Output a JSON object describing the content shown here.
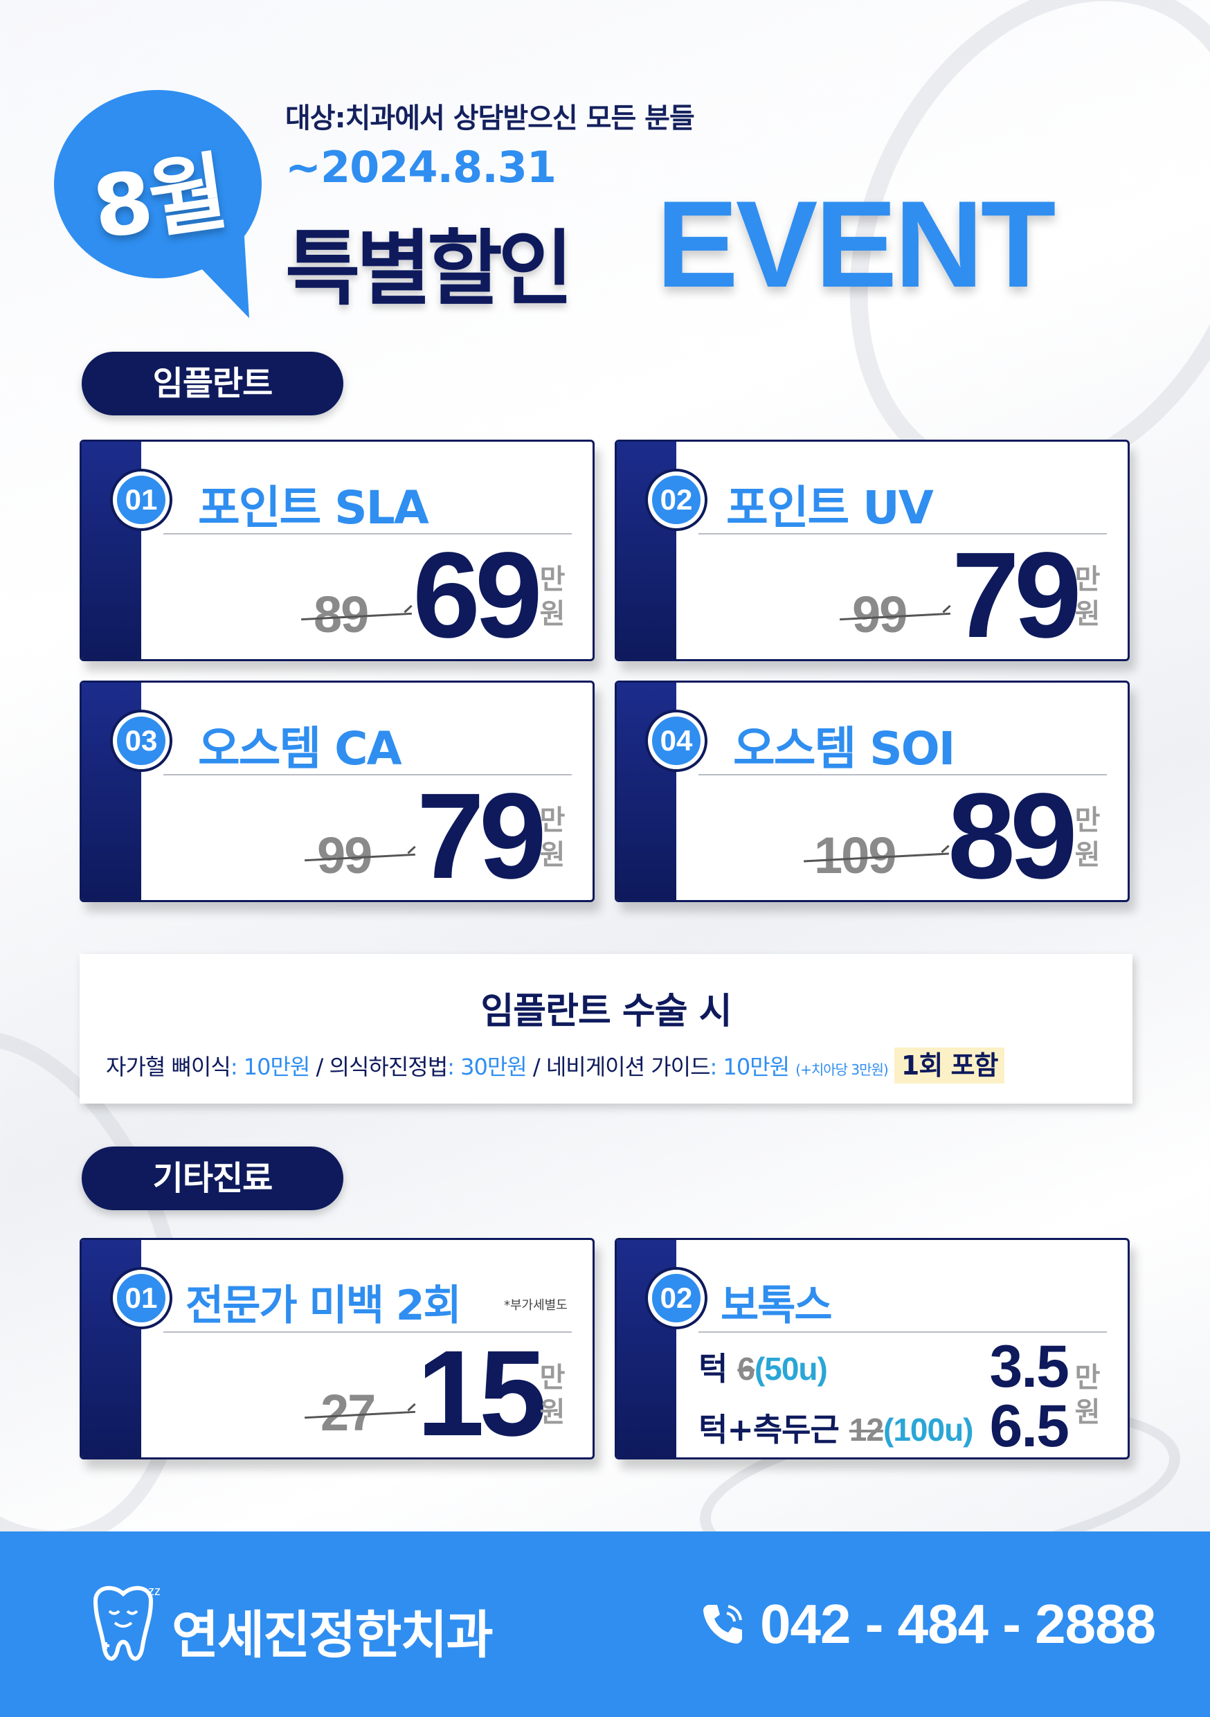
{
  "header": {
    "month_badge": "8월",
    "target": "대상:치과에서 상담받으신 모든 분들",
    "date": "~2024.8.31",
    "title_kr": "특별할인",
    "title_en": "EVENT"
  },
  "sections": {
    "implant": "임플란트",
    "other": "기타진료"
  },
  "implant_cards": [
    {
      "num": "01",
      "name": "포인트 SLA",
      "old": "89",
      "new": "69",
      "unit": "만원"
    },
    {
      "num": "02",
      "name": "포인트 UV",
      "old": "99",
      "new": "79",
      "unit": "만원"
    },
    {
      "num": "03",
      "name": "오스템 CA",
      "old": "99",
      "new": "79",
      "unit": "만원"
    },
    {
      "num": "04",
      "name": "오스템 SOI",
      "old": "109",
      "new": "89",
      "unit": "만원"
    }
  ],
  "notice": {
    "head": "임플란트 수술 시",
    "item1_label": "자가혈 뼈이식",
    "item1_value": ": 10만원",
    "sep1": " / ",
    "item2_label": "의식하진정법",
    "item2_value": ": 30만원",
    "sep2": " / ",
    "item3_label": "네비게이션 가이드",
    "item3_value": ": 10만원",
    "item3_note": "(+치아당 3만원)",
    "highlight": "1회 포함"
  },
  "other_cards": {
    "whitening": {
      "num": "01",
      "name": "전문가 미백 2회",
      "note": "*부가세별도",
      "old": "27",
      "new": "15",
      "unit": "만원"
    },
    "botox": {
      "num": "02",
      "name": "보톡스",
      "row1": {
        "label": "턱",
        "old": "6",
        "units": "(50u)",
        "price": "3.5"
      },
      "row2": {
        "label": "턱+측두근",
        "old": "12",
        "units": "(100u)",
        "price": "6.5"
      },
      "unit": "만원"
    }
  },
  "footer": {
    "clinic": "연세진정한치과",
    "phone": "042 - 484 - 2888"
  },
  "colors": {
    "accent": "#2f8ef0",
    "navy": "#0e1a5c",
    "highlight": "#fcf1c6"
  }
}
